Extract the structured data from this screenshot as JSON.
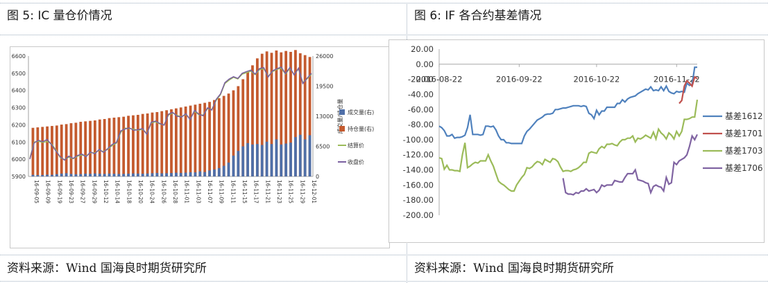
{
  "left": {
    "title": "图  5: IC 量仓价情况",
    "source": "资料来源：Wind 国海良时期货研究所"
  },
  "right": {
    "title": "图  6:    IF 各合约基差情况",
    "source": "资料来源：Wind 国海良时期货研究所"
  },
  "colors": {
    "volume": "#4f6fa8",
    "open_interest": "#c45a2e",
    "settle": "#9bbb59",
    "close": "#7a5fa0",
    "basis_1612": "#4f81bd",
    "basis_1701": "#c0504d",
    "basis_1703": "#9bbb59",
    "basis_1706": "#8064a2"
  },
  "chart_data": [
    {
      "type": "bar",
      "y_left_ticks": [
        "6600",
        "6500",
        "6400",
        "6300",
        "6200",
        "6100",
        "6000",
        "5900"
      ],
      "y_left_range": [
        5900,
        6600
      ],
      "y_right_ticks": [
        "26000",
        "19500",
        "13000",
        "6500",
        "0"
      ],
      "y_right_range": [
        0,
        26000
      ],
      "y_right_label": "成交量/持仓量",
      "x_tick_labels": [
        "16-09-05",
        "16-09-09",
        "16-09-19",
        "16-09-23",
        "16-09-27",
        "16-09-29",
        "16-10-12",
        "16-10-14",
        "16-10-18",
        "16-10-20",
        "16-10-24",
        "16-10-26",
        "16-10-28",
        "16-11-01",
        "16-11-03",
        "16-11-07",
        "16-11-09",
        "16-11-11",
        "16-11-15",
        "16-11-17",
        "16-11-21",
        "16-11-23",
        "16-11-25",
        "16-11-29",
        "16-12-01"
      ],
      "legend": [
        "成交量(右)",
        "持仓量(右)",
        "结算价",
        "收盘价"
      ],
      "series": [
        {
          "name": "成交量(右)",
          "kind": "bar",
          "axis": "right",
          "values": [
            350,
            300,
            320,
            380,
            360,
            500,
            620,
            700,
            550,
            480,
            520,
            600,
            580,
            640,
            600,
            550,
            620,
            580,
            540,
            560,
            600,
            650,
            620,
            600,
            640,
            700,
            750,
            680,
            700,
            740,
            800,
            760,
            820,
            900,
            880,
            1100,
            950,
            1300,
            1500,
            1800,
            2300,
            3000,
            4500,
            5500,
            6500,
            7200,
            6900,
            7000,
            6800,
            7500,
            7000,
            8000,
            6900,
            7100,
            7300,
            8500,
            9000,
            8000,
            8900
          ]
        },
        {
          "name": "持仓量(右)",
          "kind": "bar",
          "axis": "right",
          "values": [
            10500,
            10600,
            10700,
            10800,
            10900,
            11000,
            11200,
            11300,
            11500,
            11600,
            11800,
            11900,
            12000,
            12100,
            12300,
            12400,
            12600,
            12700,
            12800,
            12900,
            13100,
            13200,
            13300,
            13500,
            13600,
            13800,
            13900,
            14100,
            14300,
            14500,
            14700,
            14900,
            15100,
            15300,
            15500,
            15700,
            15900,
            16100,
            16500,
            16900,
            17400,
            17900,
            18600,
            19500,
            21000,
            22500,
            24000,
            25500,
            26500,
            27000,
            26700,
            27200,
            26800,
            27100,
            26900,
            27300,
            26600,
            26200,
            25800
          ]
        },
        {
          "name": "结算价",
          "kind": "line",
          "axis": "left",
          "values": [
            6005,
            6100,
            6104,
            6098,
            6103,
            6090,
            6055,
            6010,
            5998,
            6012,
            6003,
            6018,
            6024,
            6020,
            6038,
            6037,
            6052,
            6045,
            6058,
            6080,
            6094,
            6158,
            6181,
            6178,
            6175,
            6168,
            6174,
            6150,
            6210,
            6218,
            6205,
            6200,
            6258,
            6268,
            6255,
            6247,
            6260,
            6234,
            6278,
            6259,
            6257,
            6294,
            6290,
            6342,
            6375,
            6440,
            6460,
            6476,
            6467,
            6495,
            6503,
            6512,
            6492,
            6521,
            6526,
            6482,
            6510,
            6522,
            6530,
            6495,
            6528,
            6493,
            6525,
            6445,
            6468,
            6495
          ]
        },
        {
          "name": "收盘价",
          "kind": "line",
          "axis": "left",
          "values": [
            6000,
            6095,
            6110,
            6102,
            6115,
            6085,
            6048,
            6015,
            5995,
            6018,
            6005,
            6022,
            6030,
            6015,
            6042,
            6032,
            6057,
            6040,
            6062,
            6086,
            6098,
            6165,
            6176,
            6182,
            6168,
            6172,
            6178,
            6145,
            6215,
            6222,
            6208,
            6198,
            6262,
            6272,
            6250,
            6245,
            6265,
            6230,
            6284,
            6262,
            6253,
            6299,
            6286,
            6348,
            6380,
            6445,
            6466,
            6480,
            6470,
            6500,
            6510,
            6518,
            6495,
            6527,
            6532,
            6478,
            6514,
            6526,
            6536,
            6498,
            6534,
            6490,
            6530,
            6440,
            6472,
            6500
          ]
        }
      ]
    },
    {
      "type": "line",
      "y_ticks": [
        "20.00",
        "0.00",
        "-20.00",
        "-40.00",
        "-60.00",
        "-80.00",
        "-100.00",
        "-120.00",
        "-140.00",
        "-160.00",
        "-180.00",
        "-200.00"
      ],
      "y_range": [
        -200,
        20
      ],
      "x_tick_labels": [
        "2016-08-22",
        "2016-09-22",
        "2016-10-22",
        "2016-11-22"
      ],
      "x_range_days": [
        0,
        100
      ],
      "legend_position": "right",
      "series": [
        {
          "name": "基差1612",
          "x": [
            0,
            1,
            2,
            3,
            4,
            5,
            6,
            7,
            8,
            9,
            10,
            11,
            12,
            13,
            14,
            15,
            16,
            17,
            18,
            19,
            20,
            21,
            22,
            23,
            24,
            25,
            26,
            27,
            28,
            29,
            30,
            31,
            32,
            33,
            34,
            35,
            36,
            37,
            38,
            39,
            40,
            41,
            42,
            43,
            44,
            45,
            46,
            47,
            48,
            49,
            50,
            51,
            52,
            53,
            54,
            55,
            56,
            57,
            58,
            59,
            60,
            61,
            62,
            63,
            64,
            65,
            66,
            67,
            68,
            69,
            70,
            71,
            72,
            73,
            74,
            75,
            76,
            77,
            78,
            79,
            80,
            81,
            82,
            83,
            84,
            85,
            86,
            87,
            88,
            89,
            90,
            91,
            92,
            93,
            94,
            95,
            96,
            97,
            98,
            99,
            100
          ],
          "y": [
            -82,
            -84,
            -88,
            -95,
            -95,
            -93,
            -98,
            -97,
            -97,
            -96,
            -94,
            -84,
            -67,
            -93,
            -93,
            -93,
            -94,
            -93,
            -82,
            -82,
            -83,
            -82,
            -87,
            -95,
            -100,
            -100,
            -104,
            -104,
            -105,
            -105,
            -105,
            -105,
            -105,
            -95,
            -89,
            -86,
            -82,
            -78,
            -74,
            -72,
            -70,
            -67,
            -66,
            -66,
            -65,
            -60,
            -60,
            -59,
            -58,
            -58,
            -57,
            -56,
            -55,
            -55,
            -55,
            -56,
            -55,
            -56,
            -65,
            -67,
            -72,
            -61,
            -67,
            -62,
            -62,
            -57,
            -57,
            -57,
            -57,
            -52,
            -52,
            -47,
            -50,
            -46,
            -44,
            -43,
            -42,
            -39,
            -37,
            -35,
            -33,
            -34,
            -30,
            -35,
            -34,
            -35,
            -30,
            -35,
            -29,
            -36,
            -38,
            -39,
            -36,
            -37,
            -36,
            -37,
            -25,
            -28,
            -27,
            -4,
            -4
          ]
        },
        {
          "name": "基差1701",
          "x": [
            93,
            94,
            95,
            96,
            97,
            98,
            99,
            100
          ],
          "y": [
            -52,
            -48,
            -29,
            -22,
            -25,
            -29,
            -17,
            -19
          ]
        },
        {
          "name": "基差1703",
          "x": [
            0,
            1,
            2,
            3,
            4,
            5,
            6,
            7,
            8,
            9,
            10,
            11,
            12,
            13,
            14,
            15,
            16,
            17,
            18,
            19,
            20,
            21,
            22,
            23,
            24,
            25,
            26,
            27,
            28,
            29,
            30,
            31,
            32,
            33,
            34,
            35,
            36,
            37,
            38,
            39,
            40,
            41,
            42,
            43,
            44,
            45,
            46,
            47,
            48,
            49,
            50,
            51,
            52,
            53,
            54,
            55,
            56,
            57,
            58,
            59,
            60,
            61,
            62,
            63,
            64,
            65,
            66,
            67,
            68,
            69,
            70,
            71,
            72,
            73,
            74,
            75,
            76,
            77,
            78,
            79,
            80,
            81,
            82,
            83,
            84,
            85,
            86,
            87,
            88,
            89,
            90,
            91,
            92,
            93,
            94,
            95,
            96,
            97,
            98,
            99,
            100
          ],
          "y": [
            -124,
            -125,
            -139,
            -134,
            -140,
            -140,
            -141,
            -141,
            -142,
            -120,
            -104,
            -137,
            -135,
            -132,
            -130,
            -131,
            -128,
            -128,
            -128,
            -120,
            -128,
            -135,
            -145,
            -155,
            -158,
            -160,
            -163,
            -166,
            -168,
            -168,
            -160,
            -155,
            -150,
            -146,
            -137,
            -138,
            -136,
            -132,
            -129,
            -130,
            -133,
            -126,
            -128,
            -130,
            -125,
            -126,
            -129,
            -136,
            -142,
            -141,
            -141,
            -142,
            -140,
            -139,
            -137,
            -134,
            -130,
            -130,
            -118,
            -116,
            -117,
            -118,
            -112,
            -109,
            -111,
            -106,
            -106,
            -105,
            -107,
            -108,
            -103,
            -100,
            -100,
            -98,
            -98,
            -95,
            -103,
            -98,
            -99,
            -97,
            -94,
            -96,
            -98,
            -90,
            -99,
            -86,
            -91,
            -94,
            -99,
            -91,
            -94,
            -99,
            -89,
            -95,
            -89,
            -73,
            -73,
            -72,
            -70,
            -70,
            -47
          ]
        },
        {
          "name": "基差1706",
          "x": [
            48,
            49,
            50,
            51,
            52,
            53,
            54,
            55,
            56,
            57,
            58,
            59,
            60,
            61,
            62,
            63,
            64,
            65,
            66,
            67,
            68,
            69,
            70,
            71,
            72,
            73,
            74,
            75,
            76,
            77,
            78,
            79,
            80,
            81,
            82,
            83,
            84,
            85,
            86,
            87,
            88,
            89,
            90,
            91,
            92,
            93,
            94,
            95,
            96,
            97,
            98,
            99,
            100
          ],
          "y": [
            -151,
            -170,
            -172,
            -172,
            -173,
            -170,
            -171,
            -168,
            -168,
            -165,
            -168,
            -167,
            -166,
            -170,
            -167,
            -160,
            -162,
            -160,
            -160,
            -160,
            -154,
            -155,
            -156,
            -156,
            -150,
            -145,
            -145,
            -145,
            -140,
            -153,
            -154,
            -155,
            -157,
            -158,
            -170,
            -162,
            -160,
            -162,
            -163,
            -168,
            -150,
            -159,
            -157,
            -130,
            -133,
            -128,
            -126,
            -124,
            -120,
            -109,
            -95,
            -100,
            -93
          ]
        }
      ]
    }
  ]
}
